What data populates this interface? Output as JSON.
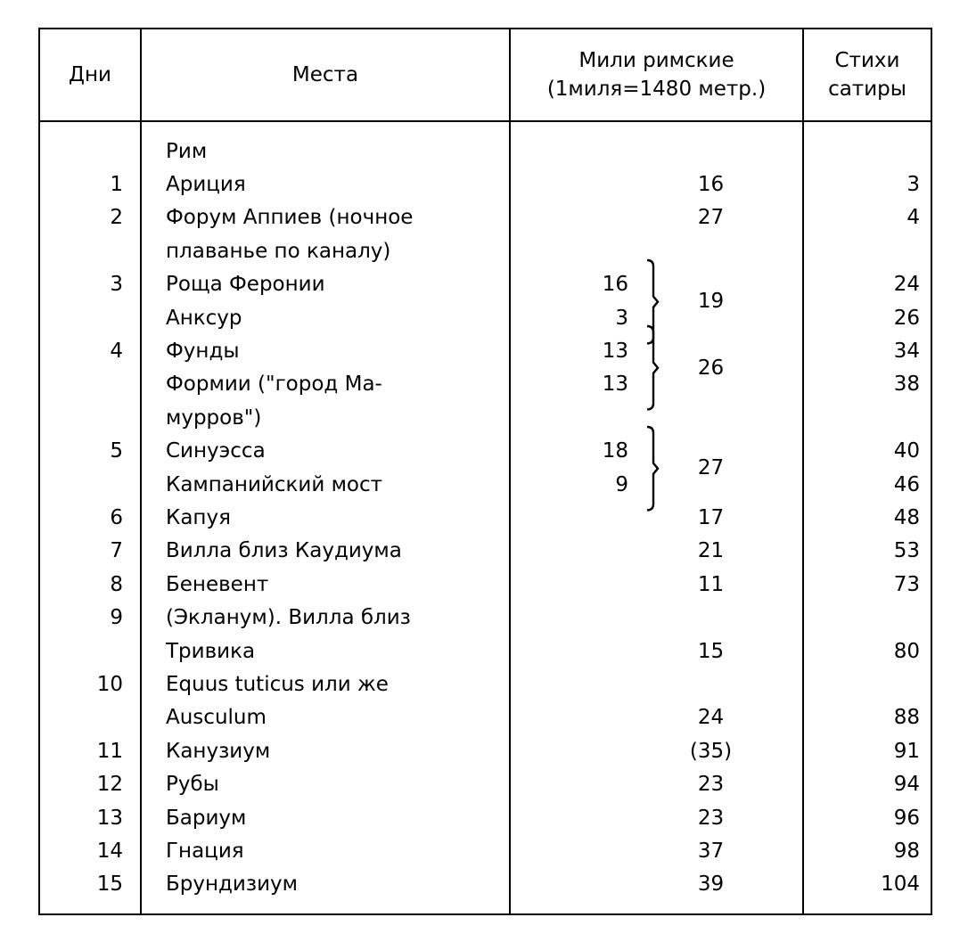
{
  "header": {
    "days": "Дни",
    "places": "Места",
    "miles_line1": "Мили римские",
    "miles_line2": "(1миля=1480 метр.)",
    "verses_line1": "Стихи",
    "verses_line2": "сатиры"
  },
  "lines": [
    {
      "day": "",
      "place": "Рим",
      "sub": "",
      "miles": "",
      "verses": ""
    },
    {
      "day": "1",
      "place": "Ариция",
      "sub": "",
      "miles": "16",
      "verses": "3"
    },
    {
      "day": "2",
      "place": "Форум Аппиев (ночное",
      "sub": "",
      "miles": "27",
      "verses": "4"
    },
    {
      "day": "",
      "place": "плаванье по каналу)",
      "sub": "",
      "miles": "",
      "verses": ""
    },
    {
      "day": "3",
      "place": "Роща Феронии",
      "sub": "16",
      "miles": "",
      "verses": "24"
    },
    {
      "day": "",
      "place": "Анксур",
      "sub": "3",
      "miles": "",
      "verses": "26"
    },
    {
      "day": "4",
      "place": "Фунды",
      "sub": "13",
      "miles": "",
      "verses": "34"
    },
    {
      "day": "",
      "place": "Формии (\"город Ма-",
      "sub": "13",
      "miles": "",
      "verses": "38"
    },
    {
      "day": "",
      "place": "мурров\")",
      "sub": "",
      "miles": "",
      "verses": ""
    },
    {
      "day": "5",
      "place": "Синуэсса",
      "sub": "18",
      "miles": "",
      "verses": "40"
    },
    {
      "day": "",
      "place": "Кампанийский мост",
      "sub": "9",
      "miles": "",
      "verses": "46"
    },
    {
      "day": "6",
      "place": "Капуя",
      "sub": "",
      "miles": "17",
      "verses": "48"
    },
    {
      "day": "7",
      "place": "Вилла близ Каудиума",
      "sub": "",
      "miles": "21",
      "verses": "53"
    },
    {
      "day": "8",
      "place": "Беневент",
      "sub": "",
      "miles": "11",
      "verses": "73"
    },
    {
      "day": "9",
      "place": "(Экланум). Вилла близ",
      "sub": "",
      "miles": "",
      "verses": ""
    },
    {
      "day": "",
      "place": "Тривика",
      "sub": "",
      "miles": "15",
      "verses": "80"
    },
    {
      "day": "10",
      "place": "Equus tuticus или же",
      "sub": "",
      "miles": "",
      "verses": ""
    },
    {
      "day": "",
      "place": "Ausculum",
      "sub": "",
      "miles": "24",
      "verses": "88"
    },
    {
      "day": "11",
      "place": "Канузиум",
      "sub": "",
      "miles": "(35)",
      "verses": "91"
    },
    {
      "day": "12",
      "place": "Рубы",
      "sub": "",
      "miles": "23",
      "verses": "94"
    },
    {
      "day": "13",
      "place": "Бариум",
      "sub": "",
      "miles": "23",
      "verses": "96"
    },
    {
      "day": "14",
      "place": "Гнация",
      "sub": "",
      "miles": "37",
      "verses": "98"
    },
    {
      "day": "15",
      "place": "Брундизиум",
      "sub": "",
      "miles": "39",
      "verses": "104"
    }
  ],
  "brace_groups": [
    {
      "first_line": 4,
      "last_line": 5,
      "total": "19"
    },
    {
      "first_line": 6,
      "last_line": 7,
      "total": "26"
    },
    {
      "first_line": 9,
      "last_line": 10,
      "total": "27"
    }
  ]
}
